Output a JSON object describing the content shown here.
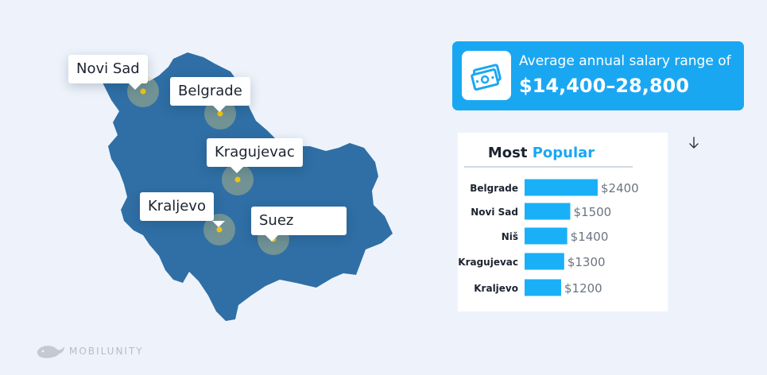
{
  "map": {
    "country_color": "#2f6fa5",
    "city_dot_color": "#f2c40f",
    "cities": [
      {
        "name": "Novi Sad"
      },
      {
        "name": "Belgrade"
      },
      {
        "name": "Kragujevac"
      },
      {
        "name": "Kraljevo"
      },
      {
        "name": "Suez"
      }
    ]
  },
  "salary": {
    "caption": "Average annual salary range of",
    "value": "$14,400–28,800",
    "icon": "money-icon",
    "accent_color": "#1aa7f2"
  },
  "chart_data": {
    "type": "bar",
    "orientation": "horizontal",
    "title_parts": [
      "Most",
      "Popular"
    ],
    "categories": [
      "Belgrade",
      "Novi Sad",
      "Niš",
      "Kragujevac",
      "Kraljevo"
    ],
    "values": [
      2400,
      1500,
      1400,
      1300,
      1200
    ],
    "value_labels": [
      "$2400",
      "$1500",
      "$1400",
      "$1300",
      "$1200"
    ],
    "bar_color": "#1ab0f8",
    "xlim": [
      0,
      2400
    ],
    "grid": false,
    "legend": "none"
  },
  "arrow_icon": "down-arrow-icon",
  "brand": {
    "name": "MOBILUNITY",
    "icon": "whale-icon"
  }
}
